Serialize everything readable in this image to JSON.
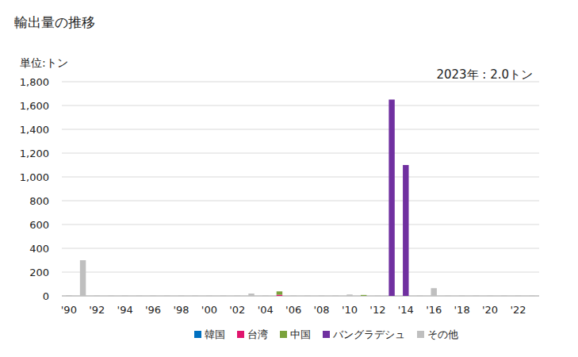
{
  "chart_data": {
    "type": "bar",
    "title": "輸出量の推移",
    "y_label": "単位:トン",
    "annotation": "2023年 : 2.0トン",
    "stacked": true,
    "grid": true,
    "legend": "bottom",
    "categories": [
      "'90",
      null,
      "'92",
      null,
      "'94",
      null,
      "'96",
      null,
      "'98",
      null,
      "'00",
      null,
      "'02",
      null,
      "'04",
      null,
      "'06",
      null,
      "'08",
      null,
      "'10",
      null,
      "'12",
      null,
      "'14",
      null,
      "'16",
      null,
      "'18",
      null,
      "'20",
      null,
      "'22",
      null
    ],
    "series": [
      {
        "name": "韓国",
        "color": "#0070c0",
        "values": [
          0,
          0,
          0,
          0,
          0,
          0,
          0,
          0,
          0,
          0,
          0,
          0,
          0,
          0,
          0,
          0,
          0,
          0,
          0,
          0,
          0,
          0,
          0,
          0,
          0,
          0,
          0,
          0,
          0,
          0,
          0,
          0,
          0,
          0
        ]
      },
      {
        "name": "台湾",
        "color": "#e0156d",
        "values": [
          0,
          0,
          0,
          0,
          0,
          0,
          0,
          0,
          0,
          0,
          0,
          0,
          0,
          0,
          0,
          10,
          0,
          0,
          0,
          0,
          0,
          0,
          0,
          0,
          0,
          0,
          0,
          0,
          0,
          0,
          0,
          0,
          0,
          0
        ]
      },
      {
        "name": "中国",
        "color": "#7aa23c",
        "values": [
          0,
          0,
          0,
          0,
          0,
          0,
          0,
          0,
          0,
          0,
          0,
          0,
          0,
          0,
          0,
          28,
          0,
          0,
          0,
          0,
          0,
          8,
          0,
          0,
          0,
          0,
          0,
          0,
          0,
          0,
          0,
          0,
          0,
          0
        ]
      },
      {
        "name": "バングラデシュ",
        "color": "#7030a0",
        "values": [
          0,
          0,
          0,
          0,
          0,
          0,
          0,
          0,
          0,
          0,
          0,
          0,
          0,
          0,
          0,
          0,
          0,
          0,
          0,
          0,
          0,
          0,
          0,
          1650,
          1100,
          0,
          0,
          0,
          0,
          0,
          0,
          0,
          0,
          0
        ]
      },
      {
        "name": "その他",
        "color": "#bfbfbf",
        "values": [
          5,
          300,
          3,
          3,
          3,
          3,
          3,
          3,
          3,
          3,
          3,
          3,
          3,
          20,
          3,
          0,
          3,
          3,
          3,
          3,
          12,
          0,
          3,
          0,
          0,
          3,
          65,
          3,
          3,
          3,
          3,
          3,
          3,
          2
        ]
      }
    ],
    "ylim": [
      0,
      1800
    ],
    "yticks": [
      0,
      200,
      400,
      600,
      800,
      {
        "value": 1000,
        "label": "1,000"
      },
      {
        "value": 1200,
        "label": "1,200"
      },
      {
        "value": 1400,
        "label": "1,400"
      },
      {
        "value": 1600,
        "label": "1,600"
      },
      {
        "value": 1800,
        "label": "1,800"
      }
    ]
  }
}
